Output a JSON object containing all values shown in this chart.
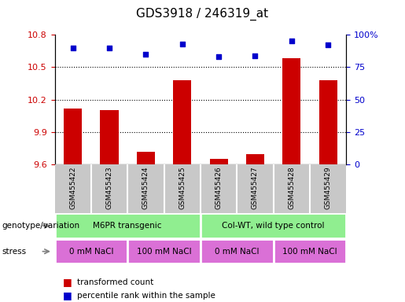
{
  "title": "GDS3918 / 246319_at",
  "samples": [
    "GSM455422",
    "GSM455423",
    "GSM455424",
    "GSM455425",
    "GSM455426",
    "GSM455427",
    "GSM455428",
    "GSM455429"
  ],
  "red_values": [
    10.12,
    10.1,
    9.72,
    10.38,
    9.65,
    9.7,
    10.58,
    10.38
  ],
  "blue_values": [
    90,
    90,
    85,
    93,
    83,
    84,
    95,
    92
  ],
  "ylim_left": [
    9.6,
    10.8
  ],
  "ylim_right": [
    0,
    100
  ],
  "yticks_left": [
    9.6,
    9.9,
    10.2,
    10.5,
    10.8
  ],
  "yticks_right": [
    0,
    25,
    50,
    75,
    100
  ],
  "ytick_labels_right": [
    "0",
    "25",
    "50",
    "75",
    "100%"
  ],
  "geno_groups": [
    {
      "label": "M6PR transgenic",
      "start": 0,
      "end": 4
    },
    {
      "label": "Col-WT, wild type control",
      "start": 4,
      "end": 8
    }
  ],
  "stress_groups": [
    {
      "label": "0 mM NaCl",
      "start": 0,
      "end": 2
    },
    {
      "label": "100 mM NaCl",
      "start": 2,
      "end": 4
    },
    {
      "label": "0 mM NaCl",
      "start": 4,
      "end": 6
    },
    {
      "label": "100 mM NaCl",
      "start": 6,
      "end": 8
    }
  ],
  "red_color": "#CC0000",
  "blue_color": "#0000CC",
  "geno_color": "#90EE90",
  "stress_color_light": "#EE82EE",
  "stress_color_dark": "#DA70D6",
  "gray_color": "#C8C8C8",
  "bar_width": 0.5,
  "legend_red": "transformed count",
  "legend_blue": "percentile rank within the sample",
  "genotype_label": "genotype/variation",
  "stress_label": "stress",
  "xlim": [
    -0.5,
    7.5
  ]
}
